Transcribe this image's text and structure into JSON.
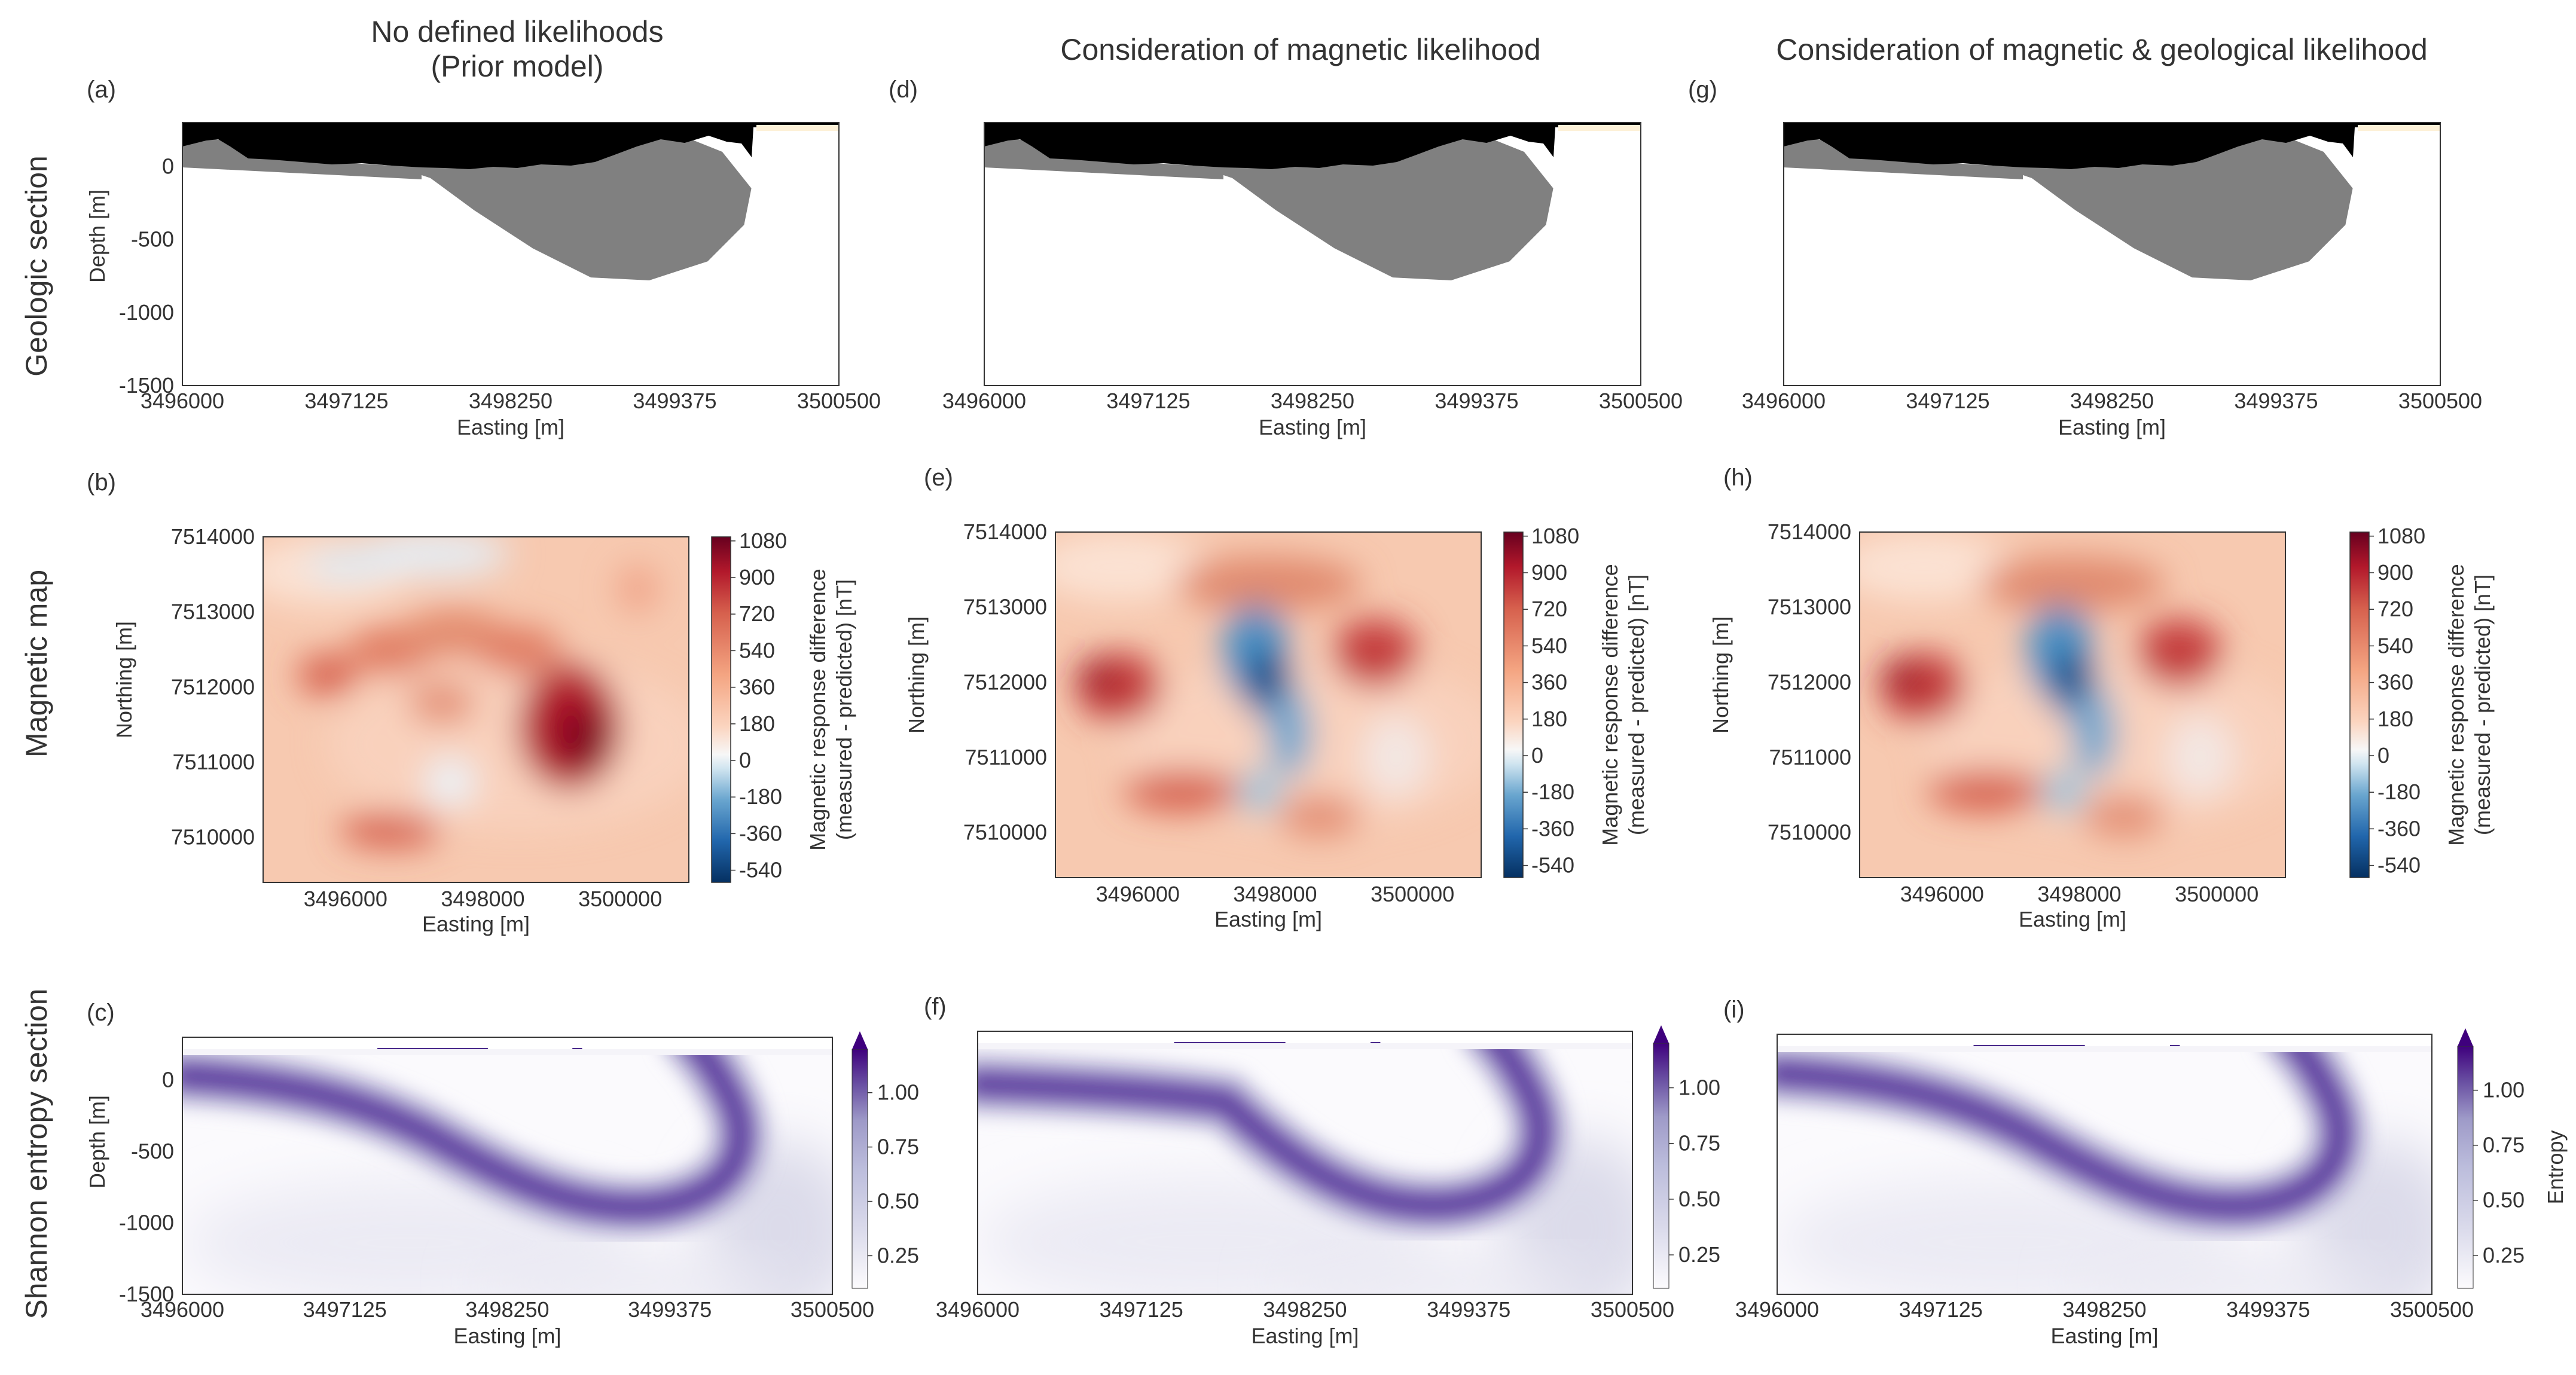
{
  "column_titles": [
    "No defined likelihoods\n(Prior model)",
    "Consideration of magnetic likelihood",
    "Consideration of magnetic & geological likelihood"
  ],
  "column_title_lines": [
    [
      "No defined likelihoods",
      "(Prior model)"
    ],
    [
      "Consideration of magnetic likelihood"
    ],
    [
      "Consideration of magnetic & geological likelihood"
    ]
  ],
  "row_titles": [
    "Geologic section",
    "Magnetic map",
    "Shannon entropy section"
  ],
  "panel_labels": [
    [
      "(a)",
      "(b)",
      "(c)"
    ],
    [
      "(d)",
      "(e)",
      "(f)"
    ],
    [
      "(g)",
      "(h)",
      "(i)"
    ]
  ],
  "chart_data": [
    {
      "type": "section",
      "name": "Geologic section",
      "xlabel": "Easting [m]",
      "ylabel": "Depth  [m]",
      "xticks": [
        "3496000",
        "3497125",
        "3498250",
        "3499375",
        "3500500"
      ],
      "yticks": [
        "0",
        "-500",
        "-1000",
        "-1500"
      ],
      "xlim": [
        3496000,
        3500500
      ],
      "ylim": [
        -1500,
        300
      ],
      "unit_colors": {
        "topography_cover": "#000000",
        "intrusion": "#808080",
        "background": "#ffffff",
        "sediment_patch": "#fdf1d8"
      },
      "intrusion_outline": [
        [
          3496000,
          80
        ],
        [
          3496500,
          60
        ],
        [
          3497000,
          45
        ],
        [
          3497400,
          20
        ],
        [
          3497700,
          -80
        ],
        [
          3498000,
          -300
        ],
        [
          3498400,
          -560
        ],
        [
          3498800,
          -760
        ],
        [
          3499200,
          -780
        ],
        [
          3499600,
          -650
        ],
        [
          3499850,
          -400
        ],
        [
          3499900,
          -150
        ],
        [
          3499700,
          100
        ],
        [
          3499400,
          220
        ],
        [
          3498000,
          60
        ],
        [
          3496000,
          200
        ]
      ]
    },
    {
      "type": "heatmap",
      "name": "Magnetic map",
      "xlabel": "Easting [m]",
      "ylabel": "Northing [m]",
      "xticks": [
        "3496000",
        "3498000",
        "3500000"
      ],
      "yticks": [
        "7514000",
        "7513000",
        "7512000",
        "7511000",
        "7510000"
      ],
      "xlim": [
        3494800,
        3501000
      ],
      "ylim": [
        7509400,
        7514000
      ],
      "colorbar_label": "Magnetic response difference\n(measured - predicted) [nT]",
      "colorbar_label_lines": [
        "Magnetic response difference",
        "(measured - predicted) [nT]"
      ],
      "colorbar_ticks": [
        "1080",
        "900",
        "720",
        "540",
        "360",
        "180",
        "0",
        "-180",
        "-360",
        "-540"
      ],
      "colorbar_range": [
        -600,
        1100
      ],
      "colormap": "RdBu_r"
    },
    {
      "type": "heatmap",
      "name": "Shannon entropy section",
      "xlabel": "Easting [m]",
      "ylabel": "Depth  [m]",
      "xticks": [
        "3496000",
        "3497125",
        "3498250",
        "3499375",
        "3500500"
      ],
      "yticks": [
        "0",
        "-500",
        "-1000",
        "-1500"
      ],
      "xlim": [
        3496000,
        3500500
      ],
      "ylim": [
        -1500,
        300
      ],
      "colorbar_label": "Entropy",
      "colorbar_ticks": [
        "1.00",
        "0.75",
        "0.50",
        "0.25"
      ],
      "colorbar_range": [
        0.1,
        1.2
      ],
      "colormap": "Purples"
    }
  ]
}
